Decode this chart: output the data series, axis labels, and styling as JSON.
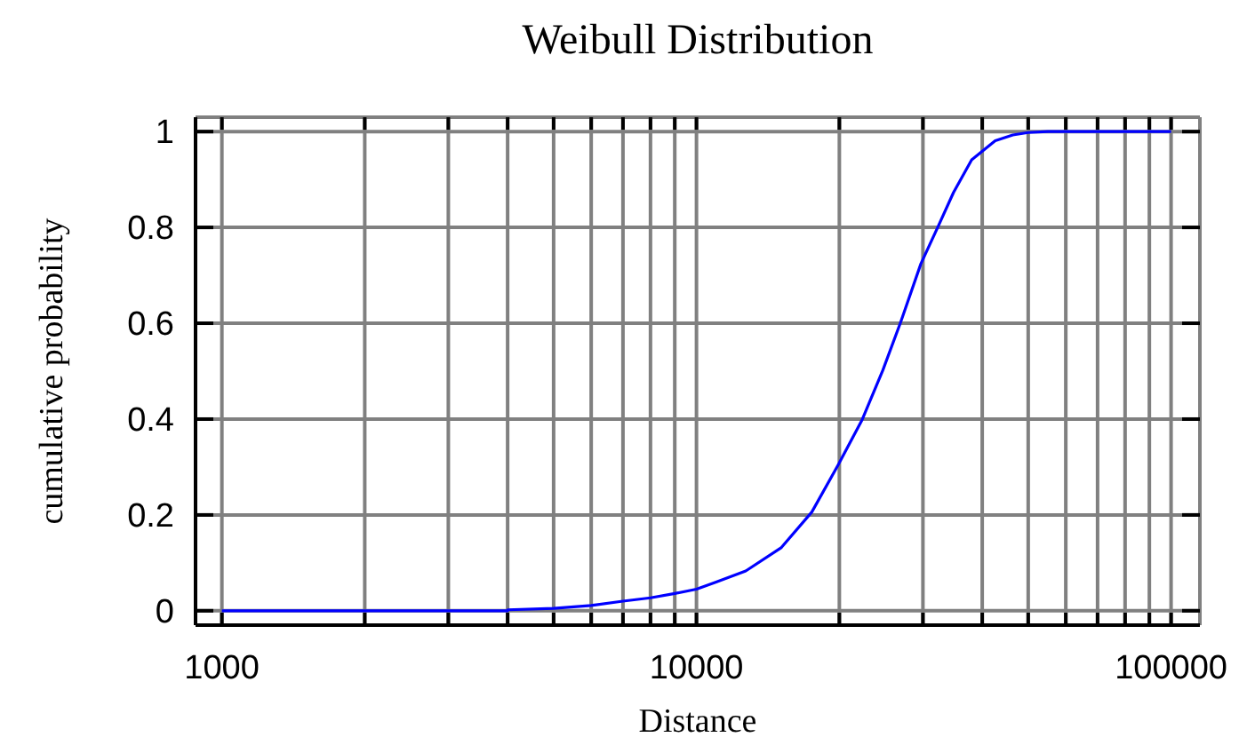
{
  "chart_data": {
    "type": "line",
    "title": "Weibull Distribution",
    "xlabel": "Distance",
    "ylabel": "cumulative probability",
    "x": [
      1000,
      4000,
      4001,
      5000,
      6000,
      7000,
      8000,
      9000,
      10000,
      11000,
      12700,
      15100,
      17500,
      19900,
      22300,
      24700,
      26900,
      29700,
      32400,
      34800,
      38000,
      42600,
      46400,
      50000,
      55000,
      100000
    ],
    "series": [
      {
        "color": "#0000ff",
        "values": [
          0,
          0,
          0.002,
          0.005,
          0.011,
          0.02,
          0.027,
          0.036,
          0.045,
          0.06,
          0.083,
          0.132,
          0.206,
          0.305,
          0.397,
          0.502,
          0.601,
          0.724,
          0.805,
          0.873,
          0.941,
          0.981,
          0.993,
          0.998,
          1,
          1
        ]
      }
    ],
    "log": "x",
    "xlim": [
      880,
      115000
    ],
    "xticks": [
      1000,
      {
        "value": 2000,
        "label": null
      },
      {
        "value": 3000,
        "label": null
      },
      {
        "value": 4000,
        "label": null
      },
      {
        "value": 5000,
        "label": null
      },
      {
        "value": 6000,
        "label": null
      },
      {
        "value": 7000,
        "label": null
      },
      {
        "value": 8000,
        "label": null
      },
      {
        "value": 9000,
        "label": null
      },
      10000,
      {
        "value": 20000,
        "label": null
      },
      {
        "value": 30000,
        "label": null
      },
      {
        "value": 40000,
        "label": null
      },
      {
        "value": 50000,
        "label": null
      },
      {
        "value": 60000,
        "label": null
      },
      {
        "value": 70000,
        "label": null
      },
      {
        "value": 80000,
        "label": null
      },
      {
        "value": 90000,
        "label": null
      },
      100000
    ],
    "ylim": [
      -0.03,
      1.03
    ],
    "yticks": [
      0,
      0.2,
      0.4,
      0.6,
      0.8,
      1
    ],
    "grid": true,
    "marker": "none",
    "line_style": "solid"
  }
}
